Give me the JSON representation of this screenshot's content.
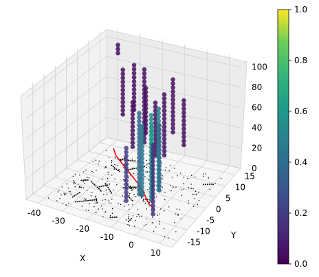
{
  "chart_data": {
    "type": "scatter",
    "projection": "3d",
    "title": "",
    "xlabel": "X",
    "ylabel": "Y",
    "zlabel": "",
    "xlim": [
      -45,
      15
    ],
    "ylim": [
      -18,
      18
    ],
    "zlim": [
      0,
      110
    ],
    "xticks": [
      -40,
      -30,
      -20,
      -10,
      0,
      10
    ],
    "yticks": [
      -15,
      -10,
      -5,
      0,
      5,
      10,
      15
    ],
    "zticks": [
      0,
      20,
      40,
      60,
      80,
      100
    ],
    "grid": true,
    "colormap": "viridis",
    "colorbar": {
      "min": 0.0,
      "max": 1.0,
      "ticks": [
        "0.0",
        "0.2",
        "0.4",
        "0.6",
        "0.8",
        "1.0"
      ]
    },
    "series": [
      {
        "kind": "trajectory-line",
        "color": "#ff0000",
        "points": [
          [
            -38,
            14,
            0
          ],
          [
            -34,
            11,
            0
          ],
          [
            -30,
            9,
            0
          ],
          [
            -26,
            7,
            0
          ],
          [
            -22,
            5,
            0
          ],
          [
            -18,
            3,
            0
          ],
          [
            -14,
            1,
            0
          ],
          [
            -11,
            -1,
            0
          ],
          [
            -8,
            -3,
            0
          ],
          [
            -5,
            -5,
            0
          ],
          [
            -2,
            -6,
            0
          ]
        ]
      },
      {
        "kind": "vertical-point-columns",
        "columns": [
          {
            "x": -36,
            "y": 14,
            "zmin": 95,
            "zmax": 105,
            "value": 0.05
          },
          {
            "x": -30,
            "y": 10,
            "zmin": 45,
            "zmax": 90,
            "value": 0.05
          },
          {
            "x": -26,
            "y": 11,
            "zmin": 50,
            "zmax": 95,
            "value": 0.05
          },
          {
            "x": -22,
            "y": 6,
            "zmin": 25,
            "zmax": 70,
            "value": 0.05
          },
          {
            "x": -19,
            "y": 9,
            "zmin": 35,
            "zmax": 80,
            "value": 0.05
          },
          {
            "x": -16,
            "y": 5,
            "zmin": 35,
            "zmax": 110,
            "value": 0.05
          },
          {
            "x": -13,
            "y": 7,
            "zmin": 20,
            "zmax": 75,
            "value": 0.05
          },
          {
            "x": -10,
            "y": 8,
            "zmin": 20,
            "zmax": 80,
            "value": 0.05
          },
          {
            "x": -8,
            "y": 10,
            "zmin": 40,
            "zmax": 95,
            "value": 0.05
          },
          {
            "x": -5,
            "y": 12,
            "zmin": 25,
            "zmax": 70,
            "value": 0.05
          },
          {
            "x": -12,
            "y": -2,
            "zmin": 0,
            "zmax": 80,
            "value": 0.38
          },
          {
            "x": -9,
            "y": -4,
            "zmin": 5,
            "zmax": 75,
            "value": 0.45
          },
          {
            "x": -6,
            "y": -3,
            "zmin": 0,
            "zmax": 85,
            "value": 0.55
          },
          {
            "x": -4,
            "y": -5,
            "zmin": 10,
            "zmax": 80,
            "value": 0.62
          },
          {
            "x": -2,
            "y": -4,
            "zmin": 15,
            "zmax": 95,
            "value": 0.5
          },
          {
            "x": 0,
            "y": -6,
            "zmin": 20,
            "zmax": 85,
            "value": 0.4
          },
          {
            "x": -14,
            "y": -6,
            "zmin": 0,
            "zmax": 55,
            "value": 0.2
          },
          {
            "x": -1,
            "y": -8,
            "zmin": 0,
            "zmax": 70,
            "value": 0.15
          }
        ]
      }
    ]
  }
}
